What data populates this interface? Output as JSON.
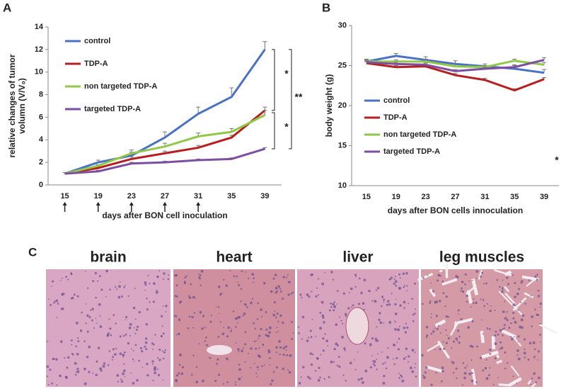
{
  "panel_labels": [
    "A",
    "B",
    "C"
  ],
  "chart_data": [
    {
      "type": "line",
      "ylabel": [
        "relative changes of tumor",
        "volumn (V/V₀)"
      ],
      "xlabel": "days after BON cell inoculation",
      "categories": [
        "15",
        "19",
        "23",
        "27",
        "31",
        "35",
        "39"
      ],
      "ylim": [
        0,
        14
      ],
      "yticks": [
        0,
        2,
        4,
        6,
        8,
        10,
        12,
        14
      ],
      "legend": "upper left",
      "series": [
        {
          "name": "control",
          "color": "#4a72c4",
          "values": [
            1.0,
            2.0,
            2.6,
            4.2,
            6.3,
            7.8,
            12.0
          ],
          "errors": [
            0.1,
            0.2,
            0.3,
            0.5,
            0.6,
            0.8,
            0.7
          ]
        },
        {
          "name": "TDP-A",
          "color": "#b51f1f",
          "values": [
            1.0,
            1.5,
            2.3,
            2.8,
            3.3,
            4.2,
            6.6
          ],
          "errors": [
            0.1,
            0.1,
            0.2,
            0.2,
            0.2,
            0.2,
            0.3
          ]
        },
        {
          "name": "non targeted TDP-A",
          "color": "#92c84a",
          "values": [
            1.0,
            1.7,
            2.8,
            3.4,
            4.3,
            4.7,
            6.2
          ],
          "errors": [
            0.1,
            0.1,
            0.3,
            0.3,
            0.3,
            0.3,
            0.4
          ]
        },
        {
          "name": "targeted TDP-A",
          "color": "#7e4ea0",
          "values": [
            1.0,
            1.2,
            1.9,
            2.0,
            2.2,
            2.3,
            3.2
          ],
          "errors": [
            0.1,
            0.1,
            0.1,
            0.1,
            0.1,
            0.1,
            0.1
          ]
        }
      ],
      "annotations": [
        "*",
        "**",
        "*"
      ]
    },
    {
      "type": "line",
      "ylabel": [
        "body weight (g)"
      ],
      "xlabel": "days after BON cells innoculation",
      "categories": [
        "15",
        "19",
        "23",
        "27",
        "31",
        "35",
        "39"
      ],
      "ylim": [
        10,
        30
      ],
      "yticks": [
        10,
        15,
        20,
        25,
        30
      ],
      "legend": "lower left",
      "series": [
        {
          "name": "control",
          "color": "#4a72c4",
          "values": [
            25.5,
            26.2,
            25.7,
            25.2,
            24.9,
            24.6,
            24.1
          ],
          "errors": [
            0.3,
            0.3,
            0.4,
            0.4,
            0.3,
            0.4,
            0.4
          ]
        },
        {
          "name": "TDP-A",
          "color": "#b51f1f",
          "values": [
            25.3,
            24.8,
            24.9,
            23.8,
            23.2,
            21.9,
            23.3
          ],
          "errors": [
            0.2,
            0.2,
            0.2,
            0.2,
            0.2,
            0.2,
            0.2
          ]
        },
        {
          "name": "non targeted TDP-A",
          "color": "#92c84a",
          "values": [
            25.5,
            25.5,
            25.5,
            24.9,
            24.8,
            25.6,
            25.1
          ],
          "errors": [
            0.2,
            0.2,
            0.3,
            0.3,
            0.2,
            0.2,
            0.3
          ]
        },
        {
          "name": "targeted TDP-A",
          "color": "#7e4ea0",
          "values": [
            25.4,
            25.2,
            25.1,
            24.3,
            24.6,
            24.8,
            25.7
          ],
          "errors": [
            0.2,
            0.2,
            0.2,
            0.2,
            0.2,
            0.3,
            0.3
          ]
        }
      ],
      "annotations": [
        "*"
      ]
    }
  ],
  "histology": [
    "brain",
    "heart",
    "liver",
    "leg muscles"
  ]
}
